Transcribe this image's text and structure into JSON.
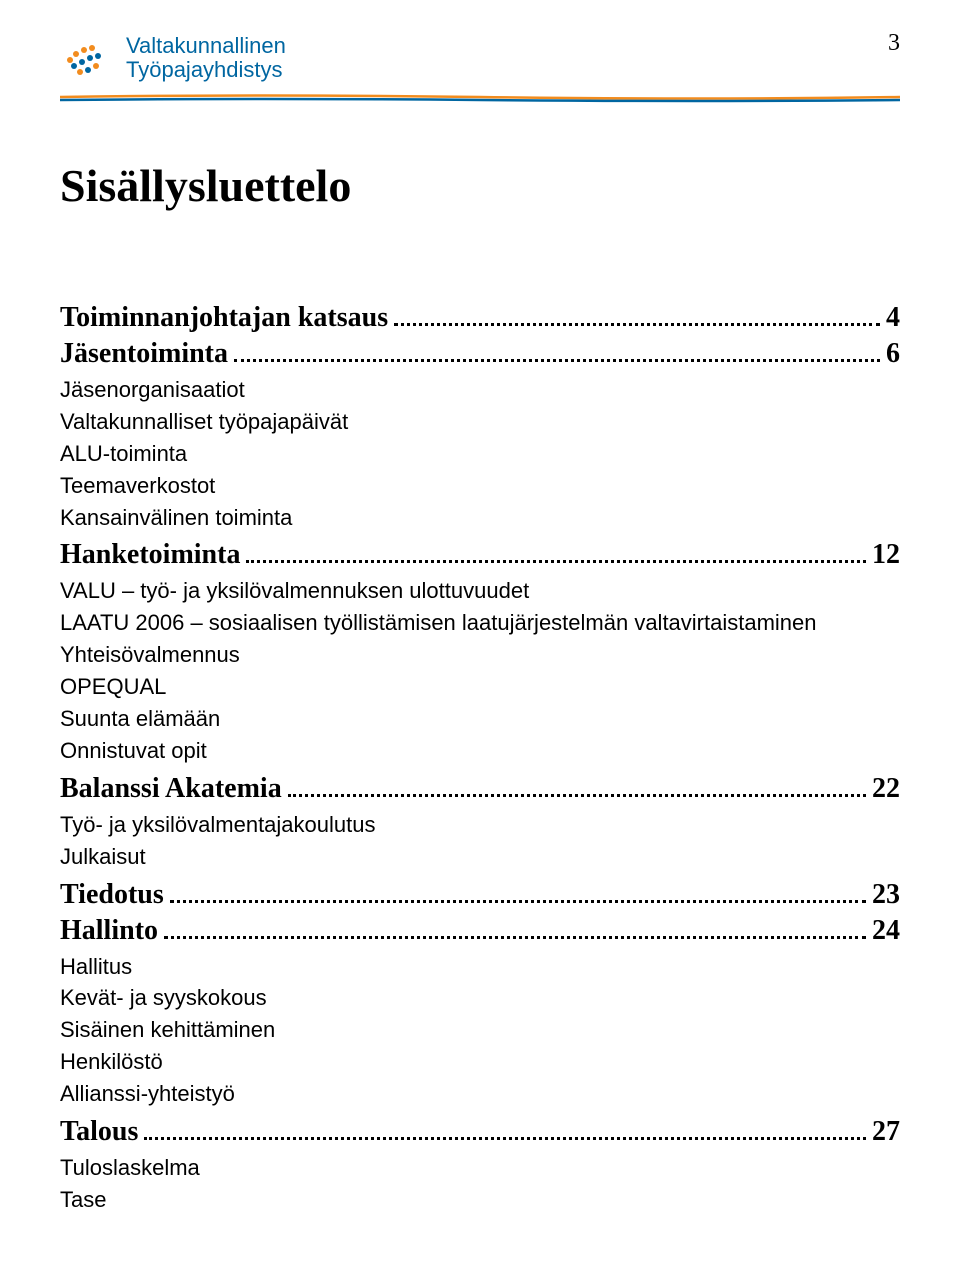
{
  "header": {
    "logo_line1": "Valtakunnallinen",
    "logo_line2": "Työpajayhdistys",
    "logo_text_color": "#0066a1",
    "dot_colors": [
      "#f28c1e",
      "#0066a1"
    ],
    "page_number": "3"
  },
  "underline": {
    "color_top": "#f28c1e",
    "color_bottom": "#0066a1"
  },
  "title": "Sisällysluettelo",
  "toc": [
    {
      "heading": "Toiminnanjohtajan katsaus",
      "page": "4",
      "subs": []
    },
    {
      "heading": "Jäsentoiminta",
      "page": "6",
      "subs": [
        "Jäsenorganisaatiot",
        "Valtakunnalliset työpajapäivät",
        "ALU-toiminta",
        "Teemaverkostot",
        "Kansainvälinen toiminta"
      ]
    },
    {
      "heading": "Hanketoiminta",
      "page": "12",
      "subs": [
        "VALU – työ- ja yksilövalmennuksen ulottuvuudet",
        "LAATU 2006 – sosiaalisen työllistämisen laatujärjestelmän valtavirtaistaminen",
        "Yhteisövalmennus",
        "OPEQUAL",
        "Suunta elämään",
        "Onnistuvat opit"
      ]
    },
    {
      "heading": "Balanssi Akatemia",
      "page": "22",
      "subs": [
        "Työ- ja yksilövalmentajakoulutus",
        "Julkaisut"
      ]
    },
    {
      "heading": "Tiedotus",
      "page": "23",
      "subs": []
    },
    {
      "heading": "Hallinto",
      "page": "24",
      "subs": [
        "Hallitus",
        "Kevät- ja syyskokous",
        "Sisäinen kehittäminen",
        "Henkilöstö",
        "Allianssi-yhteistyö"
      ]
    },
    {
      "heading": "Talous",
      "page": "27",
      "subs": [
        "Tuloslaskelma",
        "Tase"
      ]
    }
  ]
}
